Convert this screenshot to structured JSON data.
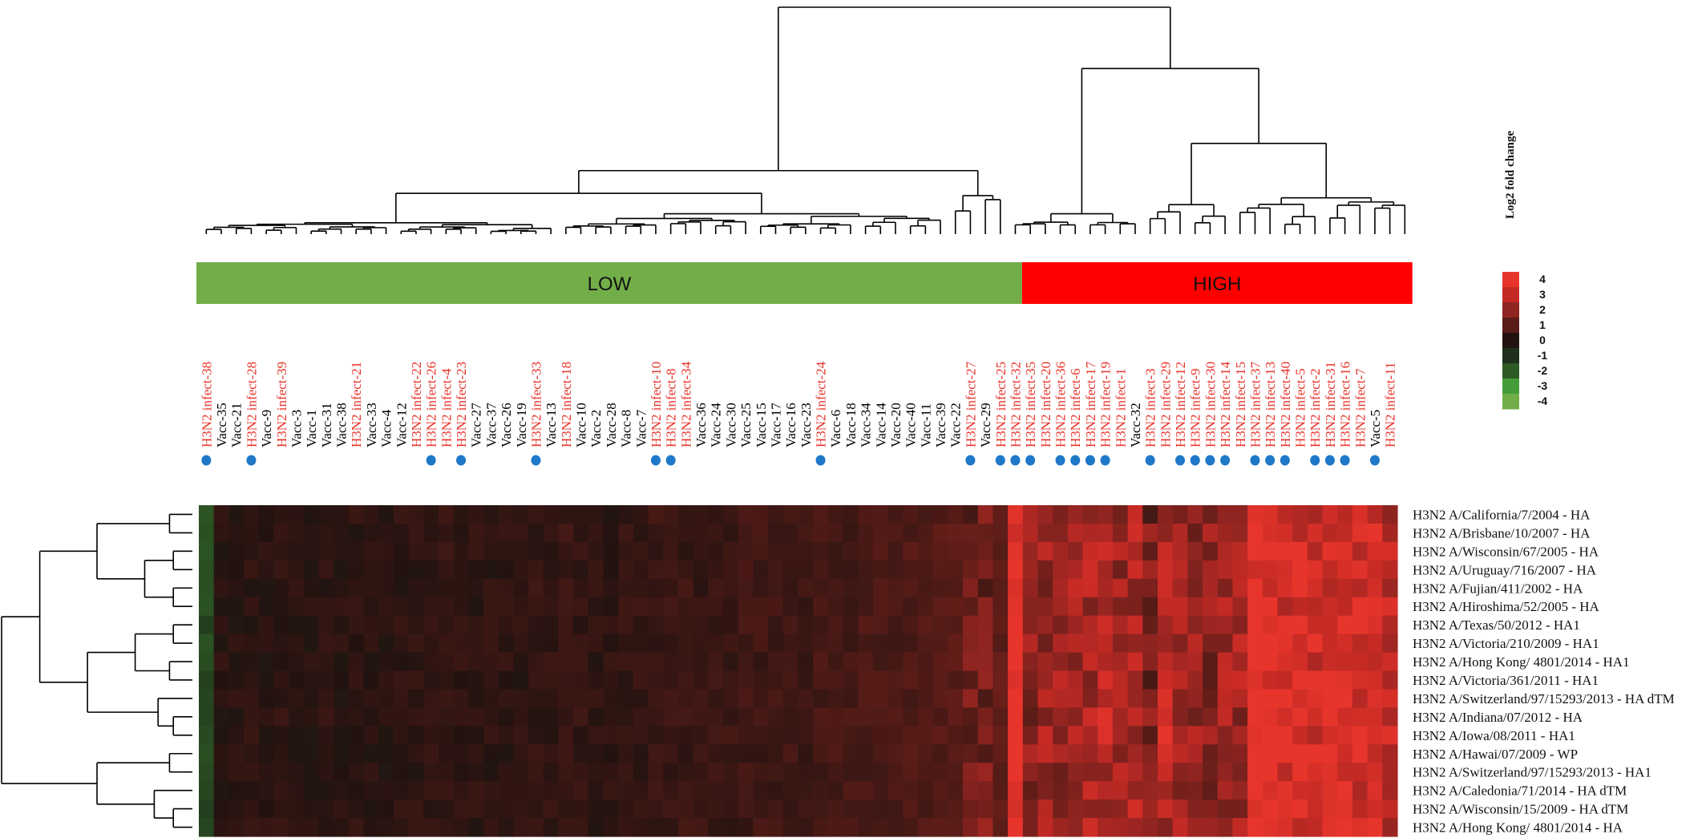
{
  "chart_data": {
    "type": "heatmap",
    "colors": {
      "low_group": "#72ae48",
      "high_group": "#ff0000",
      "infect_label": "#e8352c",
      "vacc_label": "#000000",
      "infect_marker": "#1f78c8",
      "dendrogram": "#000000"
    },
    "groups": [
      {
        "label": "LOW",
        "color": "#72ae48",
        "columns": 55
      },
      {
        "label": "HIGH",
        "color": "#ff0000",
        "columns": 26
      }
    ],
    "columns": [
      {
        "label": "H3N2 infect-38",
        "type": "infect"
      },
      {
        "label": "Vacc-35",
        "type": "vacc"
      },
      {
        "label": "Vacc-21",
        "type": "vacc"
      },
      {
        "label": "H3N2 infect-28",
        "type": "infect"
      },
      {
        "label": "Vacc-9",
        "type": "vacc"
      },
      {
        "label": "H3N2 infect-39",
        "type": "infect"
      },
      {
        "label": "Vacc-3",
        "type": "vacc"
      },
      {
        "label": "Vacc-1",
        "type": "vacc"
      },
      {
        "label": "Vacc-31",
        "type": "vacc"
      },
      {
        "label": "Vacc-38",
        "type": "vacc"
      },
      {
        "label": "H3N2 infect-21",
        "type": "infect"
      },
      {
        "label": "Vacc-33",
        "type": "vacc"
      },
      {
        "label": "Vacc-4",
        "type": "vacc"
      },
      {
        "label": "Vacc-12",
        "type": "vacc"
      },
      {
        "label": "H3N2 infect-22",
        "type": "infect"
      },
      {
        "label": "H3N2 infect-26",
        "type": "infect"
      },
      {
        "label": "H3N2 infect-4",
        "type": "infect"
      },
      {
        "label": "H3N2 infect-23",
        "type": "infect"
      },
      {
        "label": "Vacc-27",
        "type": "vacc"
      },
      {
        "label": "Vacc-37",
        "type": "vacc"
      },
      {
        "label": "Vacc-26",
        "type": "vacc"
      },
      {
        "label": "Vacc-19",
        "type": "vacc"
      },
      {
        "label": "H3N2 infect-33",
        "type": "infect"
      },
      {
        "label": "Vacc-13",
        "type": "vacc"
      },
      {
        "label": "H3N2 infect-18",
        "type": "infect"
      },
      {
        "label": "Vacc-10",
        "type": "vacc"
      },
      {
        "label": "Vacc-2",
        "type": "vacc"
      },
      {
        "label": "Vacc-28",
        "type": "vacc"
      },
      {
        "label": "Vacc-8",
        "type": "vacc"
      },
      {
        "label": "Vacc-7",
        "type": "vacc"
      },
      {
        "label": "H3N2 infect-10",
        "type": "infect"
      },
      {
        "label": "H3N2 infect-8",
        "type": "infect"
      },
      {
        "label": "H3N2 infect-34",
        "type": "infect"
      },
      {
        "label": "Vacc-36",
        "type": "vacc"
      },
      {
        "label": "Vacc-24",
        "type": "vacc"
      },
      {
        "label": "Vacc-30",
        "type": "vacc"
      },
      {
        "label": "Vacc-25",
        "type": "vacc"
      },
      {
        "label": "Vacc-15",
        "type": "vacc"
      },
      {
        "label": "Vacc-17",
        "type": "vacc"
      },
      {
        "label": "Vacc-16",
        "type": "vacc"
      },
      {
        "label": "Vacc-23",
        "type": "vacc"
      },
      {
        "label": "H3N2 infect-24",
        "type": "infect"
      },
      {
        "label": "Vacc-6",
        "type": "vacc"
      },
      {
        "label": "Vacc-18",
        "type": "vacc"
      },
      {
        "label": "Vacc-34",
        "type": "vacc"
      },
      {
        "label": "Vacc-14",
        "type": "vacc"
      },
      {
        "label": "Vacc-20",
        "type": "vacc"
      },
      {
        "label": "Vacc-40",
        "type": "vacc"
      },
      {
        "label": "Vacc-11",
        "type": "vacc"
      },
      {
        "label": "Vacc-39",
        "type": "vacc"
      },
      {
        "label": "Vacc-22",
        "type": "vacc"
      },
      {
        "label": "H3N2 infect-27",
        "type": "infect"
      },
      {
        "label": "Vacc-29",
        "type": "vacc"
      },
      {
        "label": "H3N2 infect-25",
        "type": "infect"
      },
      {
        "label": "H3N2 infect-32",
        "type": "infect"
      },
      {
        "label": "H3N2 infect-35",
        "type": "infect"
      },
      {
        "label": "H3N2 infect-20",
        "type": "infect"
      },
      {
        "label": "H3N2 infect-36",
        "type": "infect"
      },
      {
        "label": "H3N2 infect-6",
        "type": "infect"
      },
      {
        "label": "H3N2 infect-17",
        "type": "infect"
      },
      {
        "label": "H3N2 infect-19",
        "type": "infect"
      },
      {
        "label": "H3N2 infect-1",
        "type": "infect"
      },
      {
        "label": "Vacc-32",
        "type": "vacc"
      },
      {
        "label": "H3N2 infect-3",
        "type": "infect"
      },
      {
        "label": "H3N2 infect-29",
        "type": "infect"
      },
      {
        "label": "H3N2 infect-12",
        "type": "infect"
      },
      {
        "label": "H3N2 infect-9",
        "type": "infect"
      },
      {
        "label": "H3N2 infect-30",
        "type": "infect"
      },
      {
        "label": "H3N2 infect-14",
        "type": "infect"
      },
      {
        "label": "H3N2 infect-15",
        "type": "infect"
      },
      {
        "label": "H3N2 infect-37",
        "type": "infect"
      },
      {
        "label": "H3N2 infect-13",
        "type": "infect"
      },
      {
        "label": "H3N2 infect-40",
        "type": "infect"
      },
      {
        "label": "H3N2 infect-5",
        "type": "infect"
      },
      {
        "label": "H3N2 infect-2",
        "type": "infect"
      },
      {
        "label": "H3N2 infect-31",
        "type": "infect"
      },
      {
        "label": "H3N2 infect-16",
        "type": "infect"
      },
      {
        "label": "H3N2 infect-7",
        "type": "infect"
      },
      {
        "label": "Vacc-5",
        "type": "vacc"
      },
      {
        "label": "H3N2 infect-11",
        "type": "infect"
      }
    ],
    "marked_columns": [
      0,
      3,
      15,
      17,
      22,
      30,
      31,
      41,
      51,
      53,
      54,
      55,
      57,
      58,
      59,
      60,
      63,
      65,
      66,
      67,
      68,
      70,
      71,
      72,
      74,
      75,
      76,
      78
    ],
    "rows": [
      "H3N2 A/California/7/2004 - HA",
      "H3N2 A/Brisbane/10/2007 - HA",
      "H3N2 A/Wisconsin/67/2005 - HA",
      "H3N2 A/Uruguay/716/2007 - HA",
      "H3N2 A/Fujian/411/2002 - HA",
      "H3N2 A/Hiroshima/52/2005 - HA",
      "H3N2 A/Texas/50/2012 - HA1",
      "H3N2 A/Victoria/210/2009 - HA1",
      "H3N2 A/Hong Kong/ 4801/2014 - HA1",
      "H3N2 A/Victoria/361/2011 - HA1",
      "H3N2 A/Switzerland/97/15293/2013 - HA dTM",
      "H3N2 A/Indiana/07/2012 - HA",
      "H3N2 A/Iowa/08/2011 - HA1",
      "H3N2 A/Hawai/07/2009 - WP",
      "H3N2 A/Switzerland/97/15293/2013 - HA1",
      "H3N2 A/Caledonia/71/2014 - HA dTM",
      "H3N2 A/Wisconsin/15/2009 - HA dTM",
      "H3N2 A/Hong Kong/ 4801/2014 - HA"
    ],
    "column_profile": [
      -1.6,
      0.1,
      0.1,
      0.2,
      0.1,
      0.2,
      0.1,
      0.1,
      0.2,
      0.1,
      0.2,
      0.1,
      0.1,
      0.2,
      0.2,
      0.2,
      0.3,
      0.2,
      0.2,
      0.2,
      0.2,
      0.2,
      0.3,
      0.3,
      0.4,
      0.3,
      0.2,
      0.2,
      0.3,
      0.3,
      0.4,
      0.4,
      0.4,
      0.4,
      0.4,
      0.4,
      0.5,
      0.5,
      0.5,
      0.5,
      0.5,
      0.6,
      0.6,
      0.6,
      0.7,
      0.7,
      0.7,
      0.8,
      0.8,
      0.9,
      1.0,
      1.3,
      1.5,
      1.1,
      4.0,
      1.9,
      2.2,
      2.1,
      2.5,
      2.4,
      2.6,
      2.2,
      2.5,
      1.5,
      2.6,
      2.3,
      2.0,
      1.8,
      2.2,
      2.3,
      4.0,
      3.6,
      3.4,
      3.5,
      3.0,
      3.1,
      3.4,
      3.2,
      3.3,
      2.8,
      2.7
    ],
    "legend": {
      "title": "Log2 fold change",
      "ticks": [
        "4",
        "3",
        "2",
        "1",
        "0",
        "-1",
        "-2",
        "-3",
        "-4"
      ],
      "colors": [
        "#e8352c",
        "#c42a25",
        "#8f2420",
        "#5a1c18",
        "#221310",
        "#1f2f1c",
        "#2e5a24",
        "#459d39",
        "#72ae48"
      ]
    }
  }
}
